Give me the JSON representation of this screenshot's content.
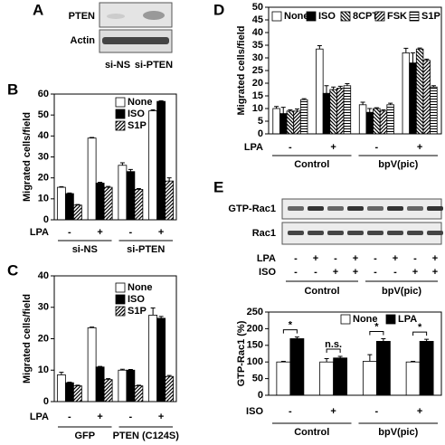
{
  "panels": {
    "A": {
      "letter": "A",
      "rows": [
        "PTEN",
        "Actin"
      ],
      "lanes": [
        "si-NS",
        "si-PTEN"
      ]
    },
    "E_blot": {
      "letter": "E",
      "rows": [
        "GTP-Rac1",
        "Rac1"
      ],
      "row_labels": [
        "LPA",
        "ISO"
      ],
      "LPA": [
        "-",
        "+",
        "-",
        "+",
        "-",
        "+",
        "-",
        "+"
      ],
      "ISO": [
        "-",
        "-",
        "+",
        "+",
        "-",
        "-",
        "+",
        "+"
      ],
      "groups": [
        "Control",
        "bpV(pic)"
      ]
    }
  },
  "chart_data": [
    {
      "type": "bar",
      "panel": "B",
      "y_label": "Migrated cells/field",
      "ylim": [
        0,
        60
      ],
      "yticks": [
        0,
        10,
        20,
        30,
        40,
        50,
        60
      ],
      "x_row_label": "LPA",
      "categories": [
        "-",
        "+",
        "-",
        "+"
      ],
      "groups": [
        "si-NS",
        "si-PTEN"
      ],
      "legend": "top-left",
      "series": [
        {
          "name": "None",
          "color": "#ffffff",
          "pattern": "none",
          "values": [
            15.5,
            39,
            26,
            52
          ],
          "errors": [
            0.3,
            0.3,
            1.2,
            0.5
          ]
        },
        {
          "name": "ISO",
          "color": "#000000",
          "pattern": "none",
          "values": [
            12.5,
            17.5,
            23,
            56.5
          ],
          "errors": [
            0.3,
            0.4,
            1,
            0.3
          ]
        },
        {
          "name": "S1P",
          "color": "#000000",
          "pattern": "hatch",
          "values": [
            7,
            15.5,
            14.5,
            18.5
          ],
          "errors": [
            0.3,
            0.4,
            0.4,
            1.5
          ]
        }
      ]
    },
    {
      "type": "bar",
      "panel": "C",
      "y_label": "Migrated cells/field",
      "ylim": [
        0,
        40
      ],
      "yticks": [
        0,
        10,
        20,
        30,
        40
      ],
      "x_row_label": "LPA",
      "categories": [
        "-",
        "+",
        "-",
        "+"
      ],
      "groups": [
        "GFP",
        "PTEN (C124S)"
      ],
      "legend": "top-left",
      "series": [
        {
          "name": "None",
          "color": "#ffffff",
          "pattern": "none",
          "values": [
            8.5,
            23.5,
            10,
            27.5
          ],
          "errors": [
            0.8,
            0.2,
            0.3,
            2.3
          ]
        },
        {
          "name": "ISO",
          "color": "#000000",
          "pattern": "none",
          "values": [
            6,
            11,
            10,
            26.5
          ],
          "errors": [
            0.2,
            0.2,
            0.2,
            0.6
          ]
        },
        {
          "name": "S1P",
          "color": "#000000",
          "pattern": "hatch",
          "values": [
            5,
            7,
            5,
            8
          ],
          "errors": [
            0.2,
            0.3,
            0.2,
            0.3
          ]
        }
      ]
    },
    {
      "type": "bar",
      "panel": "D",
      "y_label": "Migrated cells/field",
      "ylim": [
        0,
        50
      ],
      "yticks": [
        0,
        5,
        10,
        15,
        20,
        25,
        30,
        35,
        40,
        45,
        50
      ],
      "x_row_label": "LPA",
      "categories": [
        "-",
        "+",
        "-",
        "+"
      ],
      "groups": [
        "Control",
        "bpV(pic)"
      ],
      "legend": "top-row",
      "series": [
        {
          "name": "None",
          "color": "#ffffff",
          "pattern": "none",
          "values": [
            10,
            33.5,
            11.5,
            32
          ],
          "errors": [
            0.8,
            1.3,
            1,
            1.8
          ]
        },
        {
          "name": "ISO",
          "color": "#000000",
          "pattern": "none",
          "values": [
            8,
            16,
            8.5,
            28
          ],
          "errors": [
            2.5,
            3,
            1.5,
            4
          ]
        },
        {
          "name": "8CPT",
          "color": "#000000",
          "pattern": "backhatch",
          "values": [
            9,
            17.5,
            10,
            33.5
          ],
          "errors": [
            0.5,
            1,
            0.3,
            0.4
          ]
        },
        {
          "name": "FSK",
          "color": "#000000",
          "pattern": "hatch",
          "values": [
            9,
            18,
            9,
            29
          ],
          "errors": [
            0.8,
            0.8,
            0.5,
            0.5
          ]
        },
        {
          "name": "S1P",
          "color": "#000000",
          "pattern": "hlines",
          "values": [
            13.5,
            19,
            11.5,
            18.5
          ],
          "errors": [
            0.4,
            0.8,
            0.6,
            0.5
          ]
        }
      ]
    },
    {
      "type": "bar",
      "panel": "E",
      "y_label": "GTP-Rac1 (%)",
      "ylim": [
        0,
        250
      ],
      "yticks": [
        0,
        50,
        100,
        150,
        200,
        250
      ],
      "x_row_label": "ISO",
      "categories": [
        "-",
        "+",
        "-",
        "+"
      ],
      "groups": [
        "Control",
        "bpV(pic)"
      ],
      "legend": "top-row",
      "annotations": [
        "*",
        "n.s.",
        "*",
        "*"
      ],
      "series": [
        {
          "name": "None",
          "color": "#ffffff",
          "pattern": "none",
          "values": [
            100,
            100,
            102,
            100
          ],
          "errors": [
            2,
            10,
            20,
            2
          ]
        },
        {
          "name": "LPA",
          "color": "#000000",
          "pattern": "none",
          "values": [
            170,
            112,
            162,
            162
          ],
          "errors": [
            5,
            5,
            8,
            6
          ]
        }
      ]
    }
  ]
}
